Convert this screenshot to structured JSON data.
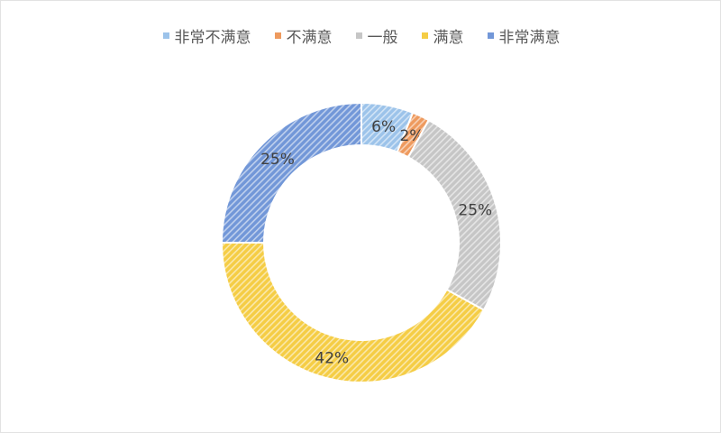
{
  "chart_data": {
    "type": "pie",
    "variant": "donut",
    "categories": [
      "非常不满意",
      "不满意",
      "一般",
      "满意",
      "非常满意"
    ],
    "values": [
      6,
      2,
      25,
      42,
      25
    ],
    "data_labels": [
      "6%",
      "2%",
      "25%",
      "42%",
      "25%"
    ],
    "colors": [
      "#9cc3ea",
      "#ee9a5e",
      "#c6c6c6",
      "#f5cd45",
      "#7297d8"
    ],
    "fill_style": "diagonal-hatch",
    "legend_position": "top"
  }
}
